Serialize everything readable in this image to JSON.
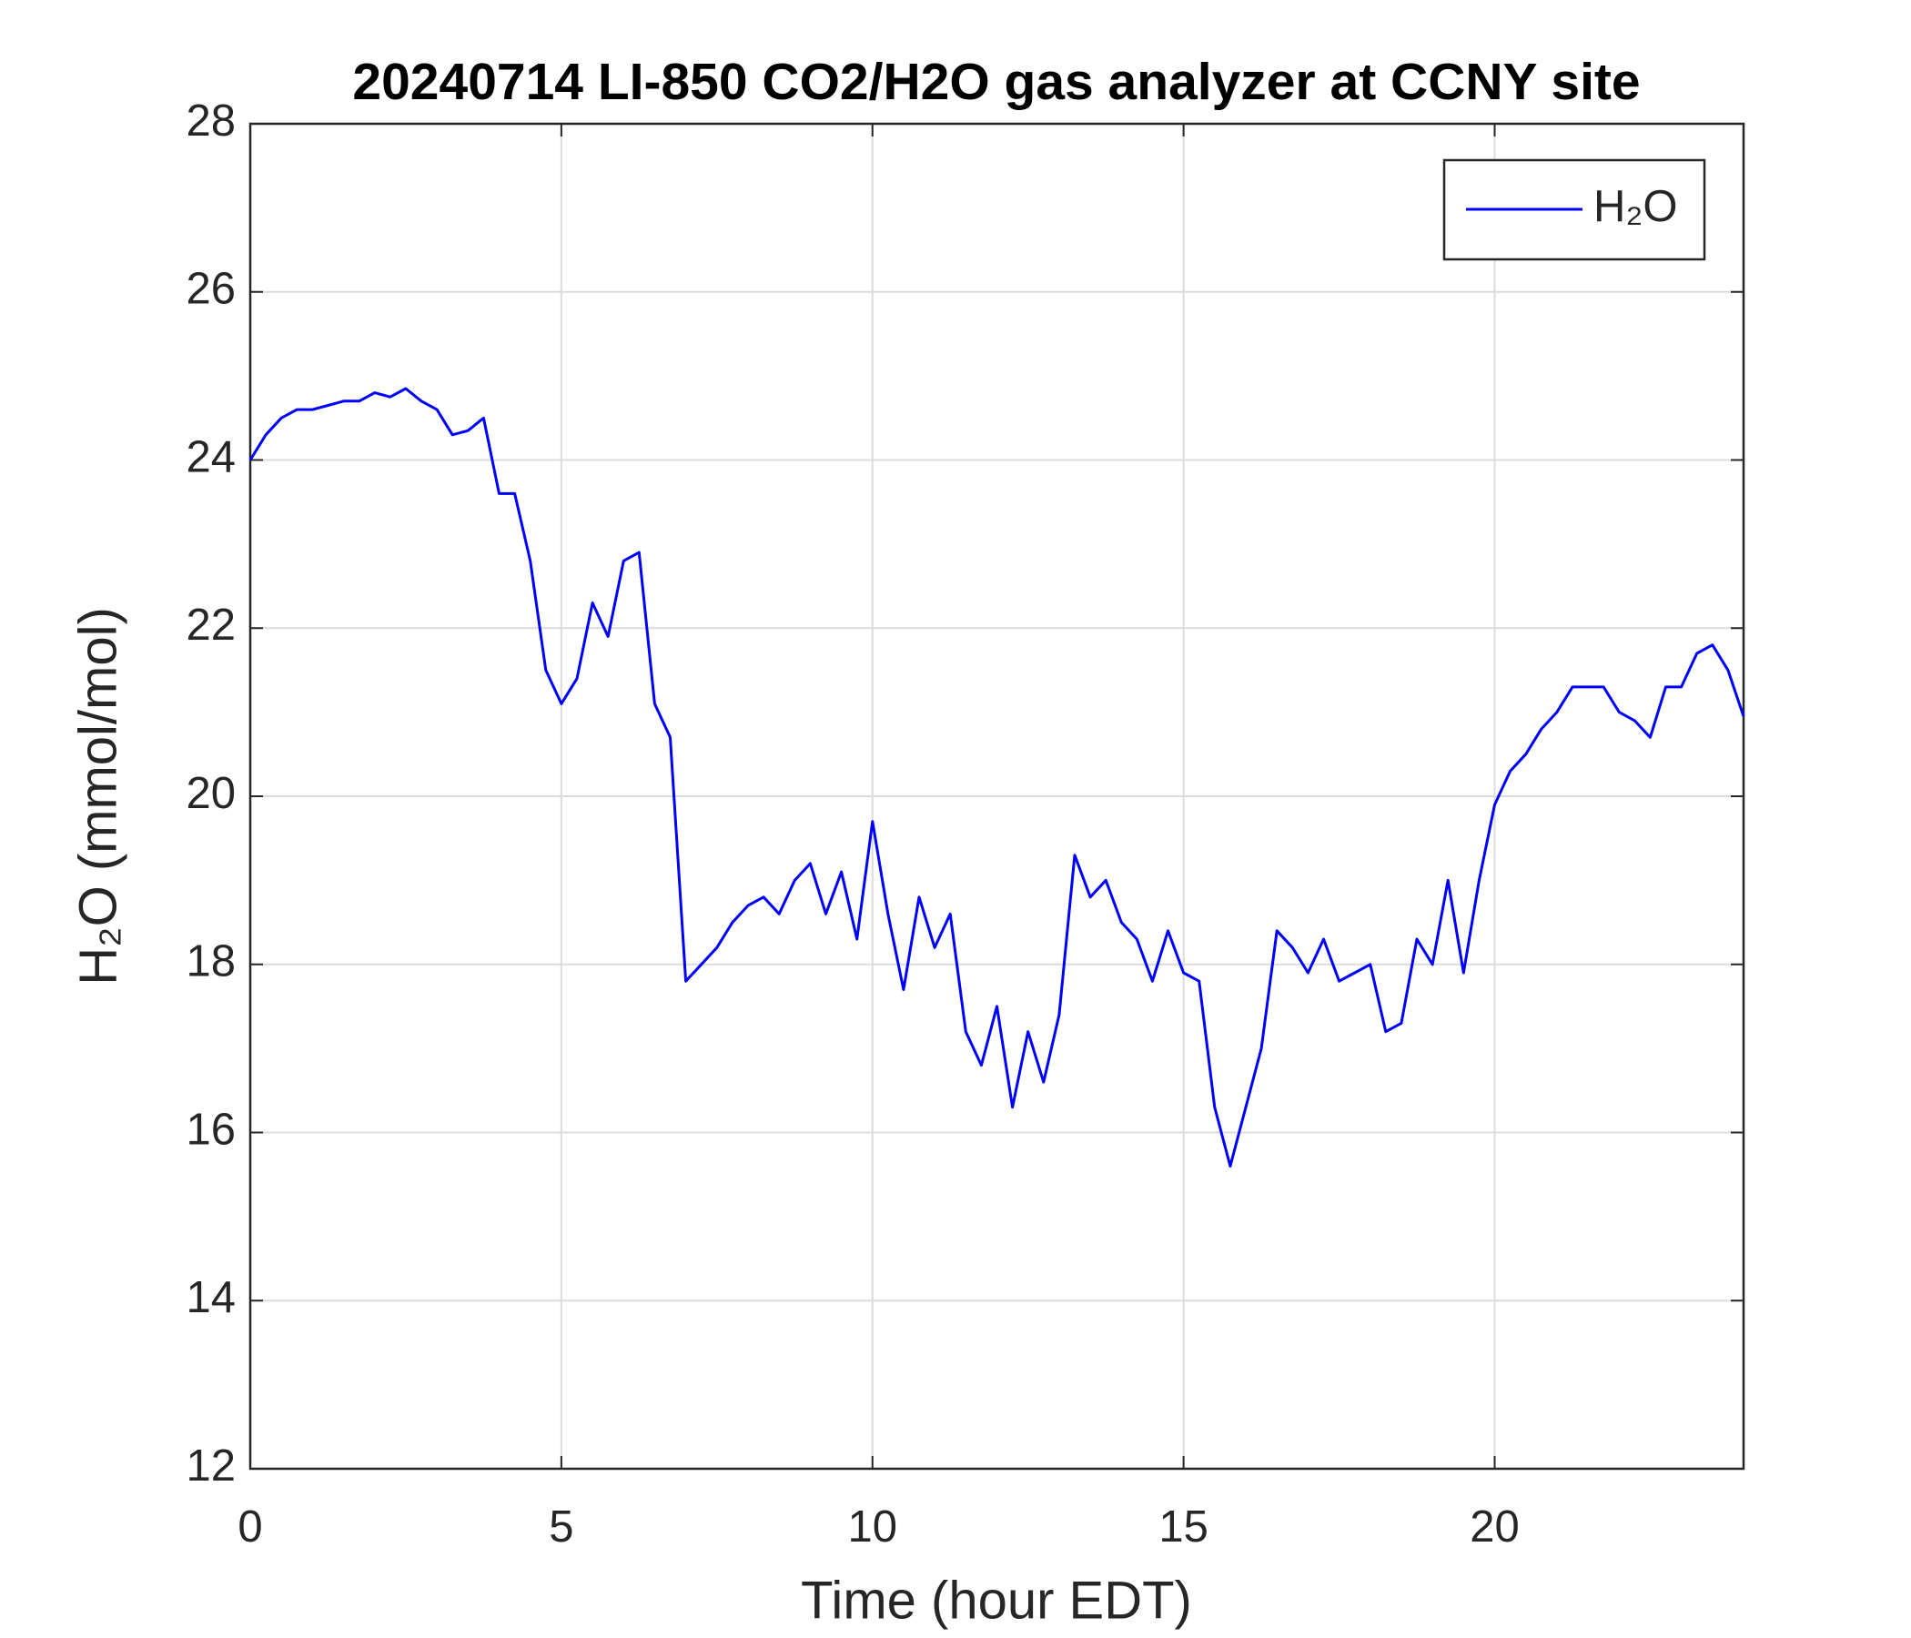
{
  "chart_data": {
    "type": "line",
    "title": "20240714 LI-850 CO2/H2O gas analyzer at CCNY site",
    "xlabel": "Time (hour EDT)",
    "ylabel": "H₂O (mmol/mol)",
    "x": [
      0,
      0.25,
      0.5,
      0.75,
      1,
      1.25,
      1.5,
      1.75,
      2,
      2.25,
      2.5,
      2.75,
      3,
      3.25,
      3.5,
      3.75,
      4,
      4.25,
      4.5,
      4.75,
      5,
      5.25,
      5.5,
      5.75,
      6,
      6.25,
      6.5,
      6.75,
      7,
      7.25,
      7.5,
      7.75,
      8,
      8.25,
      8.5,
      8.75,
      9,
      9.25,
      9.5,
      9.75,
      10,
      10.25,
      10.5,
      10.75,
      11,
      11.25,
      11.5,
      11.75,
      12,
      12.25,
      12.5,
      12.75,
      13,
      13.25,
      13.5,
      13.75,
      14,
      14.25,
      14.5,
      14.75,
      15,
      15.25,
      15.5,
      15.75,
      16,
      16.25,
      16.5,
      16.75,
      17,
      17.25,
      17.5,
      17.75,
      18,
      18.25,
      18.5,
      18.75,
      19,
      19.25,
      19.5,
      19.75,
      20,
      20.25,
      20.5,
      20.75,
      21,
      21.25,
      21.5,
      21.75,
      22,
      22.25,
      22.5,
      22.75,
      23,
      23.25,
      23.5,
      23.75,
      24
    ],
    "series": [
      {
        "name": "H₂O",
        "color": "#0000ff",
        "values": [
          24.0,
          24.3,
          24.5,
          24.6,
          24.6,
          24.65,
          24.7,
          24.7,
          24.8,
          24.75,
          24.85,
          24.7,
          24.6,
          24.3,
          24.35,
          24.5,
          23.6,
          23.6,
          22.8,
          21.5,
          21.1,
          21.4,
          22.3,
          21.9,
          22.8,
          22.9,
          21.1,
          20.7,
          17.8,
          18.0,
          18.2,
          18.5,
          18.7,
          18.8,
          18.6,
          19.0,
          19.2,
          18.6,
          19.1,
          18.3,
          19.7,
          18.6,
          17.7,
          18.8,
          18.2,
          18.6,
          17.2,
          16.8,
          17.5,
          16.3,
          17.2,
          16.6,
          17.4,
          19.3,
          18.8,
          19.0,
          18.5,
          18.3,
          17.8,
          18.4,
          17.9,
          17.8,
          16.3,
          15.6,
          16.3,
          17.0,
          18.4,
          18.2,
          17.9,
          18.3,
          17.8,
          17.9,
          18.0,
          17.2,
          17.3,
          18.3,
          18.0,
          19.0,
          17.9,
          19.0,
          19.9,
          20.3,
          20.5,
          20.8,
          21.0,
          21.3,
          21.3,
          21.3,
          21.0,
          20.9,
          20.7,
          21.3,
          21.3,
          21.7,
          21.8,
          21.5,
          20.95
        ]
      }
    ],
    "xlim": [
      0,
      24
    ],
    "xticks": [
      0,
      5,
      10,
      15,
      20
    ],
    "ylim": [
      12,
      28
    ],
    "yticks": [
      12,
      14,
      16,
      18,
      20,
      22,
      24,
      26,
      28
    ],
    "grid": true,
    "legend": "upper right"
  }
}
